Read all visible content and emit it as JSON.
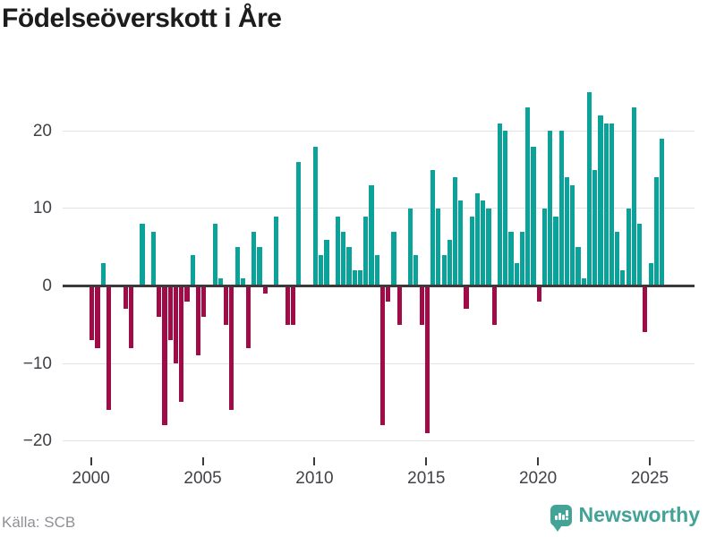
{
  "title": "Födelseöverskott i Åre",
  "source": "Källa: SCB",
  "branding": {
    "name": "Newsworthy",
    "icon": "newsworthy-speech-bubble-bar-chart-icon"
  },
  "colors": {
    "positive_bar": "#0ba29a",
    "negative_bar": "#a00c48",
    "gridline": "#e2e2e2",
    "zero_line": "#3a3a3a",
    "axis_text": "#414147",
    "title_text": "#1c1c1c",
    "source_text": "#8f8f97",
    "brand_teal": "#42a396"
  },
  "chart_data": {
    "type": "bar",
    "title": "Födelseöverskott i Åre",
    "xlabel": "",
    "ylabel": "",
    "frequency": "quarterly",
    "grid": "horizontal",
    "legend": "none",
    "ylim": [
      -22.6,
      28.8
    ],
    "y_ticks": [
      20,
      10,
      0,
      -10,
      -20
    ],
    "y_tick_labels": [
      "20",
      "10",
      "0",
      "−10",
      "−20"
    ],
    "x_tick_years": [
      2000,
      2005,
      2010,
      2015,
      2020,
      2025
    ],
    "x_tick_labels": [
      "2000",
      "2005",
      "2010",
      "2015",
      "2020",
      "2025"
    ],
    "categories": [
      "2000K1",
      "2000K2",
      "2000K3",
      "2000K4",
      "2001K1",
      "2001K2",
      "2001K3",
      "2001K4",
      "2002K1",
      "2002K2",
      "2002K3",
      "2002K4",
      "2003K1",
      "2003K2",
      "2003K3",
      "2003K4",
      "2004K1",
      "2004K2",
      "2004K3",
      "2004K4",
      "2005K1",
      "2005K2",
      "2005K3",
      "2005K4",
      "2006K1",
      "2006K2",
      "2006K3",
      "2006K4",
      "2007K1",
      "2007K2",
      "2007K3",
      "2007K4",
      "2008K1",
      "2008K2",
      "2008K3",
      "2008K4",
      "2009K1",
      "2009K2",
      "2009K3",
      "2009K4",
      "2010K1",
      "2010K2",
      "2010K3",
      "2010K4",
      "2011K1",
      "2011K2",
      "2011K3",
      "2011K4",
      "2012K1",
      "2012K2",
      "2012K3",
      "2012K4",
      "2013K1",
      "2013K2",
      "2013K3",
      "2013K4",
      "2014K1",
      "2014K2",
      "2014K3",
      "2014K4",
      "2015K1",
      "2015K2",
      "2015K3",
      "2015K4",
      "2016K1",
      "2016K2",
      "2016K3",
      "2016K4",
      "2017K1",
      "2017K2",
      "2017K3",
      "2017K4",
      "2018K1",
      "2018K2",
      "2018K3",
      "2018K4",
      "2019K1",
      "2019K2",
      "2019K3",
      "2019K4",
      "2020K1",
      "2020K2",
      "2020K3",
      "2020K4",
      "2021K1",
      "2021K2",
      "2021K3",
      "2021K4",
      "2022K1",
      "2022K2",
      "2022K3",
      "2022K4",
      "2023K1",
      "2023K2",
      "2023K3",
      "2023K4",
      "2024K1",
      "2024K2",
      "2024K3",
      "2024K4",
      "2025K1",
      "2025K2",
      "2025K3"
    ],
    "values": [
      -7,
      -8,
      3,
      -16,
      0,
      0,
      -3,
      -8,
      0,
      8,
      0,
      7,
      -4,
      -18,
      -7,
      -10,
      -15,
      -2,
      4,
      -9,
      -4,
      0,
      8,
      1,
      -5,
      -16,
      5,
      1,
      -8,
      7,
      5,
      -1,
      0,
      9,
      0,
      -5,
      -5,
      16,
      0,
      0,
      18,
      4,
      6,
      0,
      9,
      7,
      5,
      2,
      2,
      9,
      13,
      4,
      -18,
      -2,
      7,
      -5,
      0,
      10,
      4,
      -5,
      -19,
      15,
      10,
      4,
      6,
      14,
      11,
      -3,
      9,
      12,
      11,
      10,
      -5,
      21,
      20,
      7,
      3,
      7,
      23,
      18,
      -2,
      10,
      20,
      9,
      20,
      14,
      13,
      5,
      1,
      25,
      15,
      22,
      21,
      21,
      7,
      2,
      10,
      23,
      8,
      -6,
      3,
      14,
      19
    ]
  }
}
